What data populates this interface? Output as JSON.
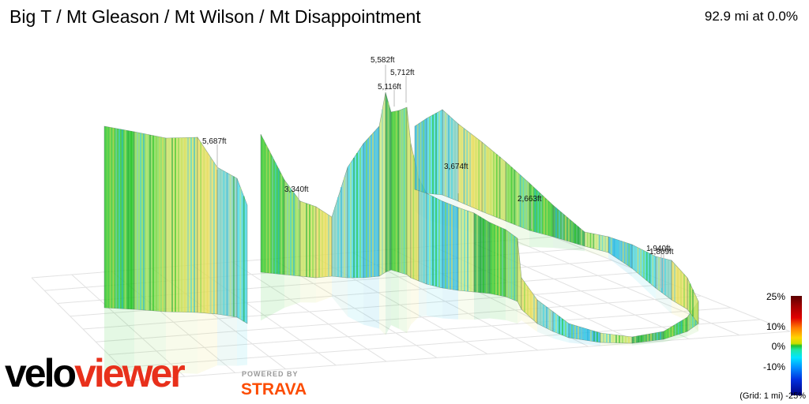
{
  "header": {
    "title": "Big T / Mt Gleason / Mt Wilson / Mt Disappointment",
    "stats": "92.9 mi at 0.0%"
  },
  "peaks": [
    {
      "label": "5,582ft"
    },
    {
      "label": "5,712ft"
    },
    {
      "label": "5,116ft"
    },
    {
      "label": "5,687ft"
    },
    {
      "label": "3,340ft"
    },
    {
      "label": "3,674ft"
    },
    {
      "label": "2,663ft"
    },
    {
      "label": "1,940ft"
    },
    {
      "label": "1,869ft"
    }
  ],
  "legend": {
    "labels": [
      "25%",
      "10%",
      "0%",
      "-10%",
      "-25%"
    ],
    "grid_note": "(Grid: 1 mi) -25%"
  },
  "brand": {
    "velo": "velo",
    "viewer": "viewer",
    "powered_by": "POWERED BY",
    "strava": "STRAVA"
  },
  "colors": {
    "grade_palette": [
      "#1ec21e",
      "#7fd84a",
      "#c9e05a",
      "#e6dd5a",
      "#7fd0c0",
      "#3fd6e6",
      "#22b7e0",
      "#c8e87a",
      "#1faa3a"
    ],
    "brand_red": "#e8301b",
    "strava_orange": "#fc4c02"
  }
}
